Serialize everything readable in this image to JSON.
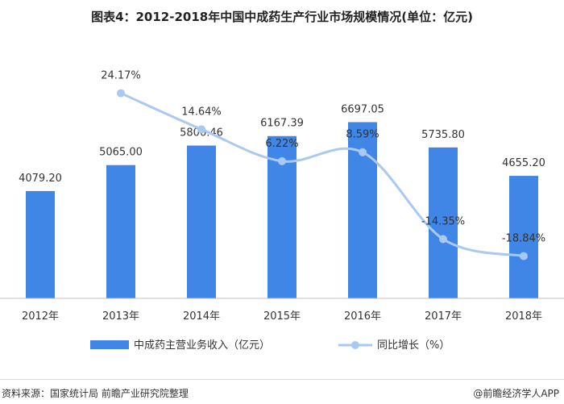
{
  "title": "图表4：2012-2018年中国中成药生产行业市场规模情况(单位：亿元)",
  "source": "资料来源：国家统计局 前瞻产业研究院整理",
  "brand": "@前瞻经济学人APP",
  "colors": {
    "bar": "#3f86e6",
    "line": "#a9c8f2",
    "axis": "#bfbfbf"
  },
  "chart_data": {
    "type": "bar",
    "categories": [
      "2012年",
      "2013年",
      "2014年",
      "2015年",
      "2016年",
      "2017年",
      "2018年"
    ],
    "series": [
      {
        "name": "中成药主营业务收入（亿元）",
        "kind": "bar",
        "values": [
          4079.2,
          5065.0,
          5806.46,
          6167.39,
          6697.05,
          5735.8,
          4655.2
        ],
        "labels": [
          "4079.20",
          "5065.00",
          "5806.46",
          "6167.39",
          "6697.05",
          "5735.80",
          "4655.20"
        ]
      },
      {
        "name": "同比增长（%）",
        "kind": "line",
        "values": [
          null,
          24.17,
          14.64,
          6.22,
          8.59,
          -14.35,
          -18.84
        ],
        "labels": [
          "",
          "24.17%",
          "14.64%",
          "6.22%",
          "8.59%",
          "-14.35%",
          "-18.84%"
        ]
      }
    ],
    "ylim": [
      0,
      9500
    ],
    "y2lim": [
      -30,
      36
    ],
    "grid": false,
    "legend": "bottom"
  }
}
